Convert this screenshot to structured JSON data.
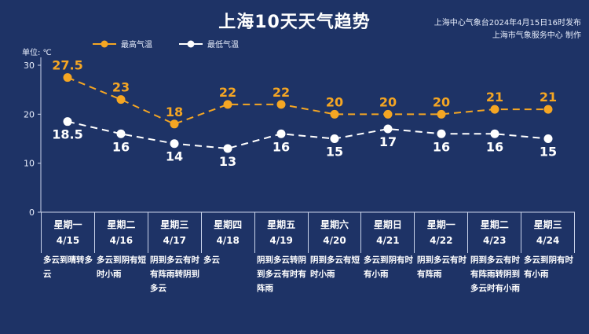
{
  "title": "上海10天天气趋势",
  "publisher": [
    "上海中心气象台2024年4月15日16时发布",
    "上海市气象服务中心 制作"
  ],
  "unit_label": "单位: ℃",
  "colors": {
    "background": "#1e3366",
    "high": "#f5a623",
    "low": "#ffffff",
    "axis": "#c9d3ea"
  },
  "chart_data": {
    "type": "line",
    "ylim": [
      0,
      30
    ],
    "yticks": [
      0,
      10,
      20,
      30
    ],
    "legend_position": "top-left",
    "categories": [
      "4/15",
      "4/16",
      "4/17",
      "4/18",
      "4/19",
      "4/20",
      "4/21",
      "4/22",
      "4/23",
      "4/24"
    ],
    "series": [
      {
        "name": "最高气温",
        "values": [
          27.5,
          23,
          18,
          22,
          22,
          20,
          20,
          20,
          21,
          21
        ]
      },
      {
        "name": "最低气温",
        "values": [
          18.5,
          16,
          14,
          13,
          16,
          15,
          17,
          16,
          16,
          15
        ]
      }
    ]
  },
  "days": [
    {
      "weekday": "星期一",
      "date": "4/15",
      "weather": "多云到晴转多云"
    },
    {
      "weekday": "星期二",
      "date": "4/16",
      "weather": "多云到阴有短时小雨"
    },
    {
      "weekday": "星期三",
      "date": "4/17",
      "weather": "阴到多云有时有阵雨转阴到多云"
    },
    {
      "weekday": "星期四",
      "date": "4/18",
      "weather": "多云"
    },
    {
      "weekday": "星期五",
      "date": "4/19",
      "weather": "阴到多云转阴到多云有时有阵雨"
    },
    {
      "weekday": "星期六",
      "date": "4/20",
      "weather": "阴到多云有短时小雨"
    },
    {
      "weekday": "星期日",
      "date": "4/21",
      "weather": "多云到阴有时有小雨"
    },
    {
      "weekday": "星期一",
      "date": "4/22",
      "weather": "阴到多云有时有阵雨"
    },
    {
      "weekday": "星期二",
      "date": "4/23",
      "weather": "阴到多云有时有阵雨转阴到多云时有小雨"
    },
    {
      "weekday": "星期三",
      "date": "4/24",
      "weather": "多云到阴有时有小雨"
    }
  ]
}
